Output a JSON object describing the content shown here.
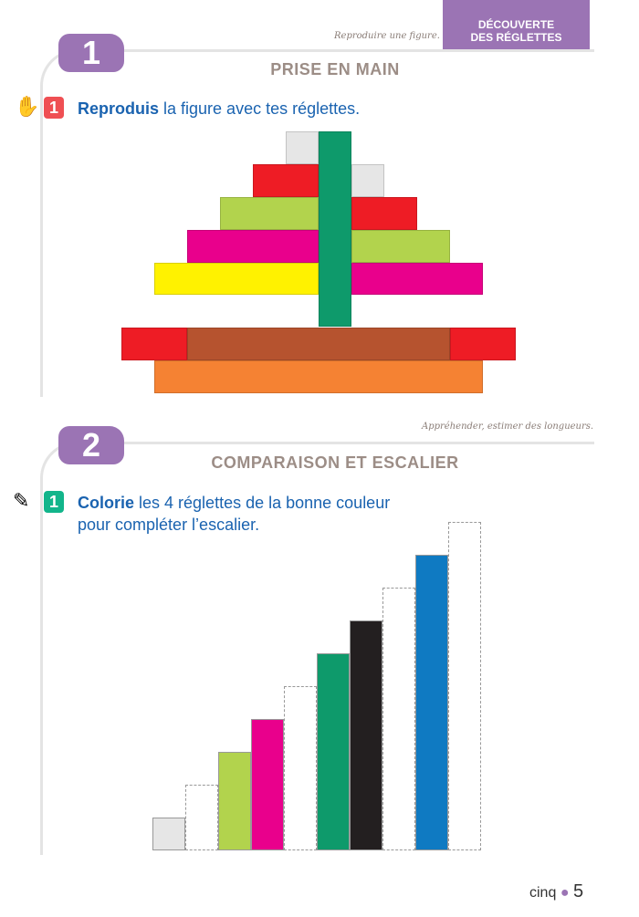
{
  "header": {
    "hint": "Reproduire une figure.",
    "category_line1": "DÉCOUVERTE",
    "category_line2": "DES RÉGLETTES",
    "category_color": "#9b74b4"
  },
  "section1": {
    "number": "1",
    "title": "PRISE EN MAIN",
    "exercise": {
      "number": "1",
      "bold": "Reproduis",
      "text": " la figure avec tes réglettes.",
      "icon": "hand-icon"
    },
    "figure": [
      {
        "color": "#e6e6e6",
        "name": "white"
      },
      {
        "color": "#0e9a6b",
        "name": "dark-green"
      },
      {
        "color": "#ee1c25",
        "name": "red"
      },
      {
        "color": "#e6e6e6",
        "name": "white"
      },
      {
        "color": "#b2d34d",
        "name": "light-green"
      },
      {
        "color": "#ee1c25",
        "name": "red"
      },
      {
        "color": "#e9008c",
        "name": "pink"
      },
      {
        "color": "#b2d34d",
        "name": "light-green"
      },
      {
        "color": "#fff200",
        "name": "yellow"
      },
      {
        "color": "#e9008c",
        "name": "pink"
      },
      {
        "color": "#ee1c25",
        "name": "red"
      },
      {
        "color": "#b6532f",
        "name": "brown"
      },
      {
        "color": "#ee1c25",
        "name": "red"
      },
      {
        "color": "#f58233",
        "name": "orange"
      }
    ]
  },
  "section2": {
    "number": "2",
    "hint": "Appréhender, estimer des longueurs.",
    "title": "COMPARAISON ET ESCALIER",
    "exercise": {
      "number": "1",
      "bold": "Colorie",
      "text": " les 4 réglettes de la bonne couleur",
      "text2": "pour compléter l’escalier.",
      "icon": "pencil-icon"
    },
    "staircase": [
      {
        "length": 1,
        "color": "#e6e6e6"
      },
      {
        "length": 2,
        "color": null
      },
      {
        "length": 3,
        "color": "#b2d34d"
      },
      {
        "length": 4,
        "color": "#e9008c"
      },
      {
        "length": 5,
        "color": null
      },
      {
        "length": 6,
        "color": "#0e9a6b"
      },
      {
        "length": 7,
        "color": "#231f20"
      },
      {
        "length": 8,
        "color": null
      },
      {
        "length": 9,
        "color": "#0f7ac2"
      },
      {
        "length": 10,
        "color": null
      }
    ]
  },
  "footer": {
    "word": "cinq",
    "page": "5"
  }
}
